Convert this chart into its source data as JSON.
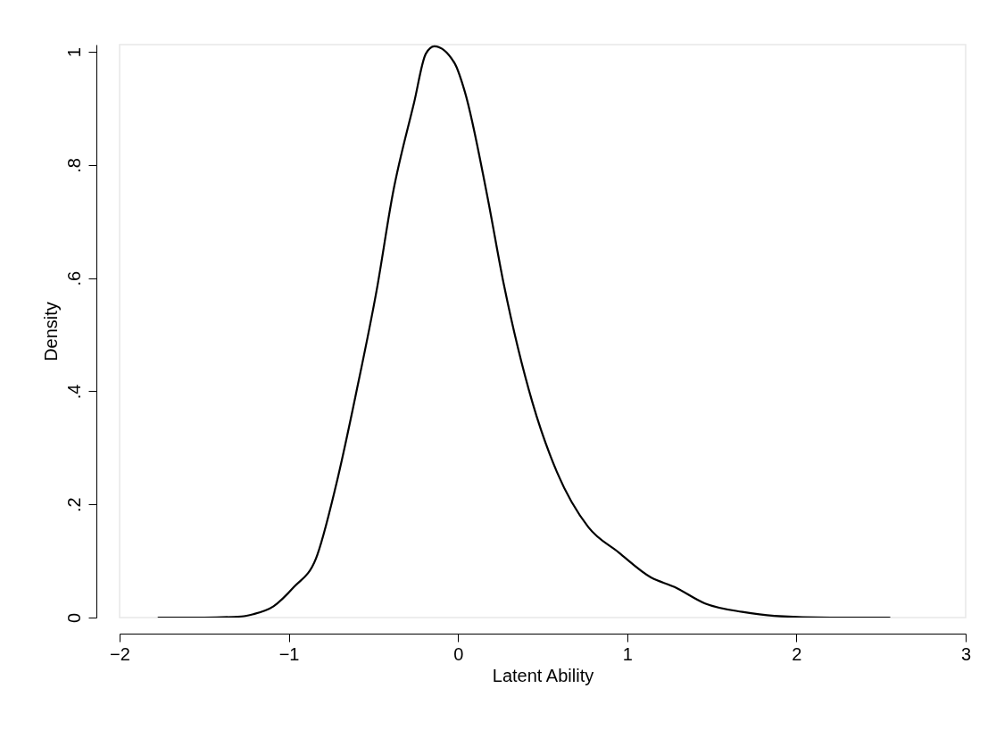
{
  "chart_data": {
    "type": "line",
    "xlabel": "Latent Ability",
    "ylabel": "Density",
    "xlim": [
      -2,
      3
    ],
    "ylim": [
      0,
      1.013
    ],
    "xticks": [
      {
        "value": -2,
        "label": "−2"
      },
      {
        "value": -1,
        "label": "−1"
      },
      0,
      1,
      2,
      3
    ],
    "yticks": [
      0,
      {
        "value": 0.2,
        "label": ".2"
      },
      {
        "value": 0.4,
        "label": ".4"
      },
      {
        "value": 0.6,
        "label": ".6"
      },
      {
        "value": 0.8,
        "label": ".8"
      },
      1
    ],
    "grid": false,
    "marker": "none",
    "line_style": "solid",
    "series": [
      {
        "color": "#000000",
        "x": [
          -1.77,
          -1.5,
          -1.28,
          -1.21,
          -1.09,
          -0.97,
          -0.84,
          -0.72,
          -0.6,
          -0.48,
          -0.385,
          -0.26,
          -0.19,
          -0.14,
          -0.02,
          0.04,
          0.17,
          0.27,
          0.44,
          0.585,
          0.77,
          0.95,
          1.14,
          1.28,
          1.46,
          1.68,
          1.87,
          2.2,
          2.55
        ],
        "values": [
          0,
          0,
          0.002,
          0.006,
          0.02,
          0.054,
          0.104,
          0.235,
          0.4,
          0.58,
          0.75,
          0.91,
          0.997,
          1.01,
          0.98,
          0.93,
          0.75,
          0.59,
          0.38,
          0.257,
          0.16,
          0.115,
          0.071,
          0.054,
          0.025,
          0.01,
          0.003,
          0,
          0
        ]
      }
    ]
  }
}
